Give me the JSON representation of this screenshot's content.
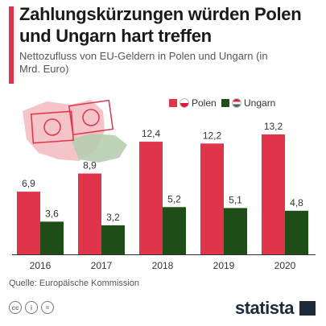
{
  "header": {
    "title": "Zahlungskürzungen würden Polen und Ungarn hart treffen",
    "subtitle": "Nettozufluss von EU-Geldern in Polen und Ungarn (in Mrd. Euro)",
    "accent_color": "#e0344b"
  },
  "chart_data": {
    "type": "bar",
    "categories": [
      "2016",
      "2017",
      "2018",
      "2019",
      "2020"
    ],
    "series": [
      {
        "name": "Polen",
        "values": [
          6.9,
          8.9,
          12.4,
          12.2,
          13.2
        ],
        "color": "#e0344b"
      },
      {
        "name": "Ungarn",
        "values": [
          3.6,
          3.2,
          5.2,
          5.1,
          4.8
        ],
        "color": "#1f4d18"
      }
    ],
    "value_labels": {
      "Polen": [
        "6,9",
        "8,9",
        "12,4",
        "12,2",
        "13,2"
      ],
      "Ungarn": [
        "3,6",
        "3,2",
        "5,2",
        "5,1",
        "4,8"
      ]
    },
    "ylim": [
      0,
      14
    ],
    "grid": false,
    "legend_position": "top-right"
  },
  "footer": {
    "source": "Quelle: Europäische Kommission",
    "brand": "statista",
    "license_icons": [
      "cc-icon",
      "by-icon",
      "nd-icon"
    ]
  }
}
